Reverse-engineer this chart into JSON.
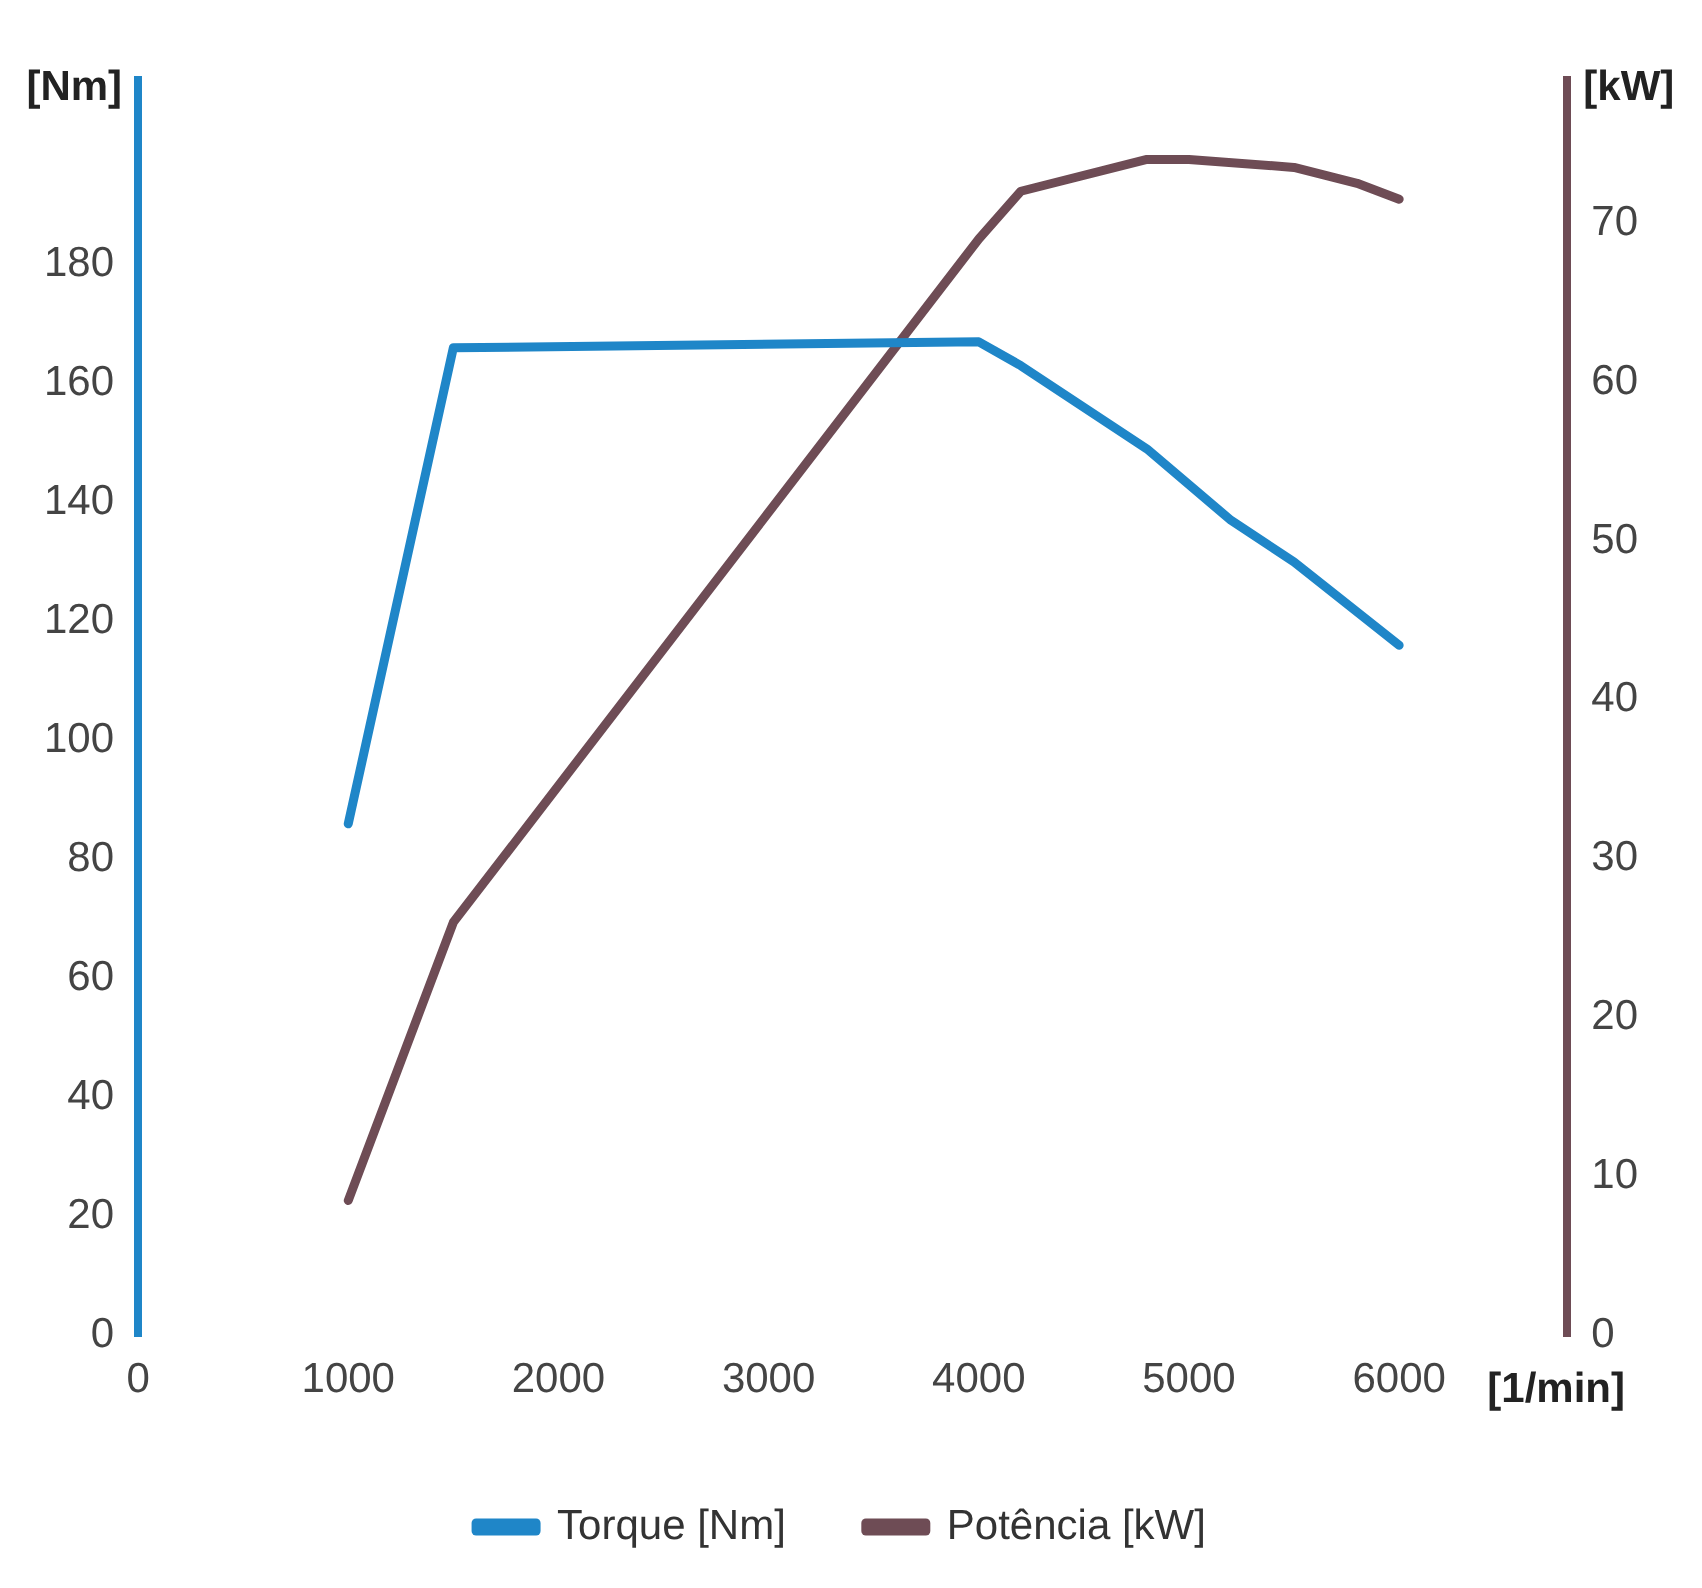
{
  "chart_data": {
    "type": "line",
    "xlabel": "[1/min]",
    "ylabel": "[Nm]",
    "y2label": "[kW]",
    "xlim": [
      0,
      6800
    ],
    "xticks": [
      0,
      1000,
      2000,
      3000,
      4000,
      5000,
      6000
    ],
    "ylim": [
      0,
      211
    ],
    "yticks": [
      0,
      20,
      40,
      60,
      80,
      100,
      120,
      140,
      160,
      180
    ],
    "y2lim": [
      0,
      79
    ],
    "y2ticks": [
      0,
      10,
      20,
      30,
      40,
      50,
      60,
      70
    ],
    "grid": false,
    "legend": "bottom",
    "marker": "none",
    "line_style": "solid",
    "series": [
      {
        "name": "Torque [Nm]",
        "color": "#1f86c8",
        "x": [
          1000,
          1500,
          4000,
          4200,
          4800,
          5200,
          5500,
          6000
        ],
        "values": [
          86,
          166,
          167,
          163,
          149,
          137,
          130,
          116
        ]
      },
      {
        "name": "Potência [kW]",
        "color": "#6e4c55",
        "axis": "y2",
        "x": [
          1000,
          1500,
          4000,
          4200,
          4800,
          5000,
          5500,
          5800,
          6000
        ],
        "values": [
          8.5,
          26,
          69,
          72,
          74,
          74,
          73.5,
          72.5,
          71.5
        ]
      }
    ]
  }
}
